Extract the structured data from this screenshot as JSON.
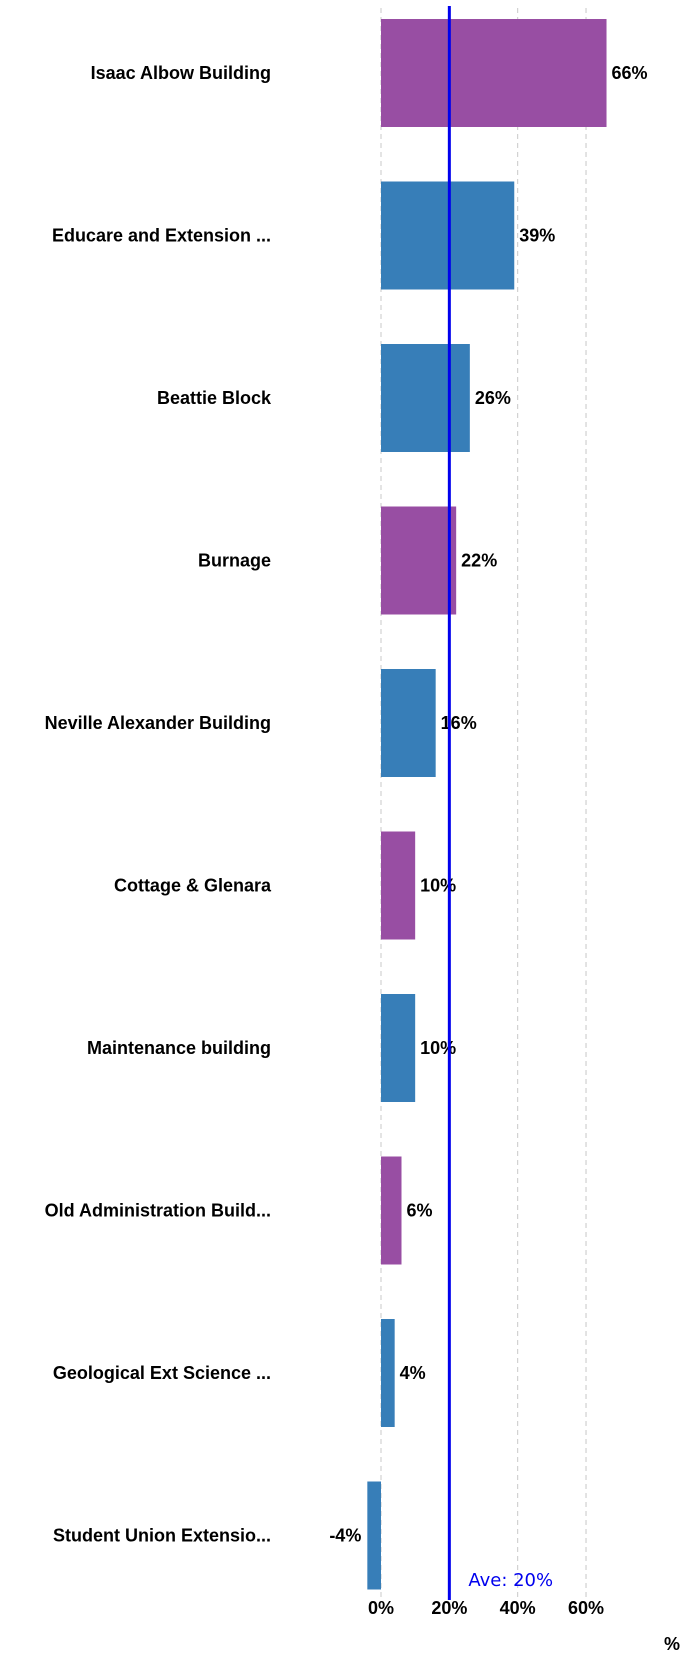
{
  "chart_data": {
    "type": "bar",
    "orientation": "horizontal",
    "categories": [
      "Isaac Albow Building",
      "Educare and Extension ...",
      "Beattie Block",
      "Burnage",
      "Neville Alexander Building",
      "Cottage & Glenara",
      "Maintenance building",
      "Old Administration Build...",
      "Geological Ext Science ...",
      "Student Union Extensio..."
    ],
    "values": [
      66,
      39,
      26,
      22,
      16,
      10,
      10,
      6,
      4,
      -4
    ],
    "value_labels": [
      "66%",
      "39%",
      "26%",
      "22%",
      "16%",
      "10%",
      "10%",
      "6%",
      "4%",
      "-4%"
    ],
    "bar_colors": [
      "#984ea3",
      "#377eb8",
      "#377eb8",
      "#984ea3",
      "#377eb8",
      "#984ea3",
      "#377eb8",
      "#984ea3",
      "#377eb8",
      "#377eb8"
    ],
    "xlim": [
      -4,
      66
    ],
    "x_ticks": [
      0,
      20,
      40,
      60
    ],
    "x_tick_labels": [
      "0%",
      "20%",
      "40%",
      "60%"
    ],
    "x_unit": "%",
    "grid": "vertical dashed",
    "average": {
      "value": 20,
      "label": "Ave: 20%",
      "color": "#0000ee"
    },
    "title": "",
    "xlabel": "",
    "ylabel": ""
  }
}
